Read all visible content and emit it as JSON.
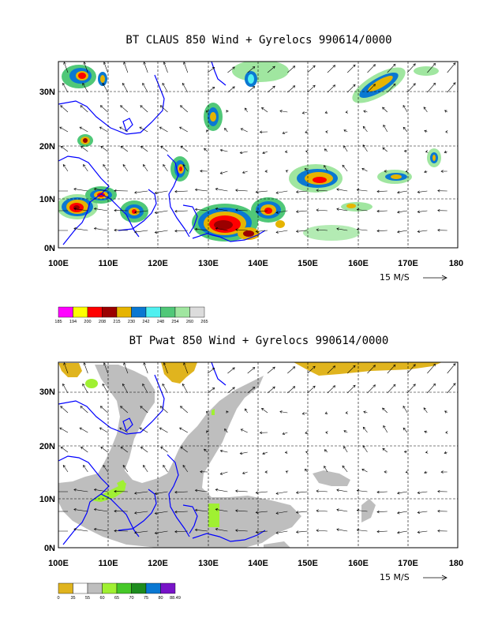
{
  "panels": [
    {
      "title": "BT CLAUS 850 Wind + Gyrelocs 990614/0000",
      "lat_labels": [
        "30N",
        "20N",
        "10N",
        "0N"
      ],
      "lon_labels": [
        "100E",
        "110E",
        "120E",
        "130E",
        "140E",
        "150E",
        "160E",
        "170E",
        "180"
      ],
      "scale_label": "15 M/S",
      "legend": {
        "labels": [
          "185",
          "194",
          "200",
          "208",
          "215",
          "230",
          "242",
          "248",
          "254",
          "260",
          "265"
        ],
        "colors": [
          "#ff00ff",
          "#ffff00",
          "#ff0000",
          "#9b0000",
          "#e6b400",
          "#0a78d2",
          "#50f0f0",
          "#50c878",
          "#a0e6a0",
          "#dcdcdc"
        ]
      }
    },
    {
      "title": "BT Pwat 850 Wind + Gyrelocs 990614/0000",
      "lat_labels": [
        "30N",
        "20N",
        "10N",
        "0N"
      ],
      "lon_labels": [
        "100E",
        "110E",
        "120E",
        "130E",
        "140E",
        "150E",
        "160E",
        "170E",
        "180"
      ],
      "scale_label": "15 M/S",
      "legend": {
        "labels": [
          "0",
          "35",
          "55",
          "60",
          "65",
          "70",
          "75",
          "80",
          "88.49"
        ],
        "colors": [
          "#e0b41e",
          "#ffffff",
          "#bebebe",
          "#a0f032",
          "#46c828",
          "#1e8c1e",
          "#0a78d2",
          "#7814c8"
        ]
      }
    }
  ],
  "colors": {
    "coastline": "#0000ff",
    "frame": "#000000",
    "gridline": "#000000"
  }
}
